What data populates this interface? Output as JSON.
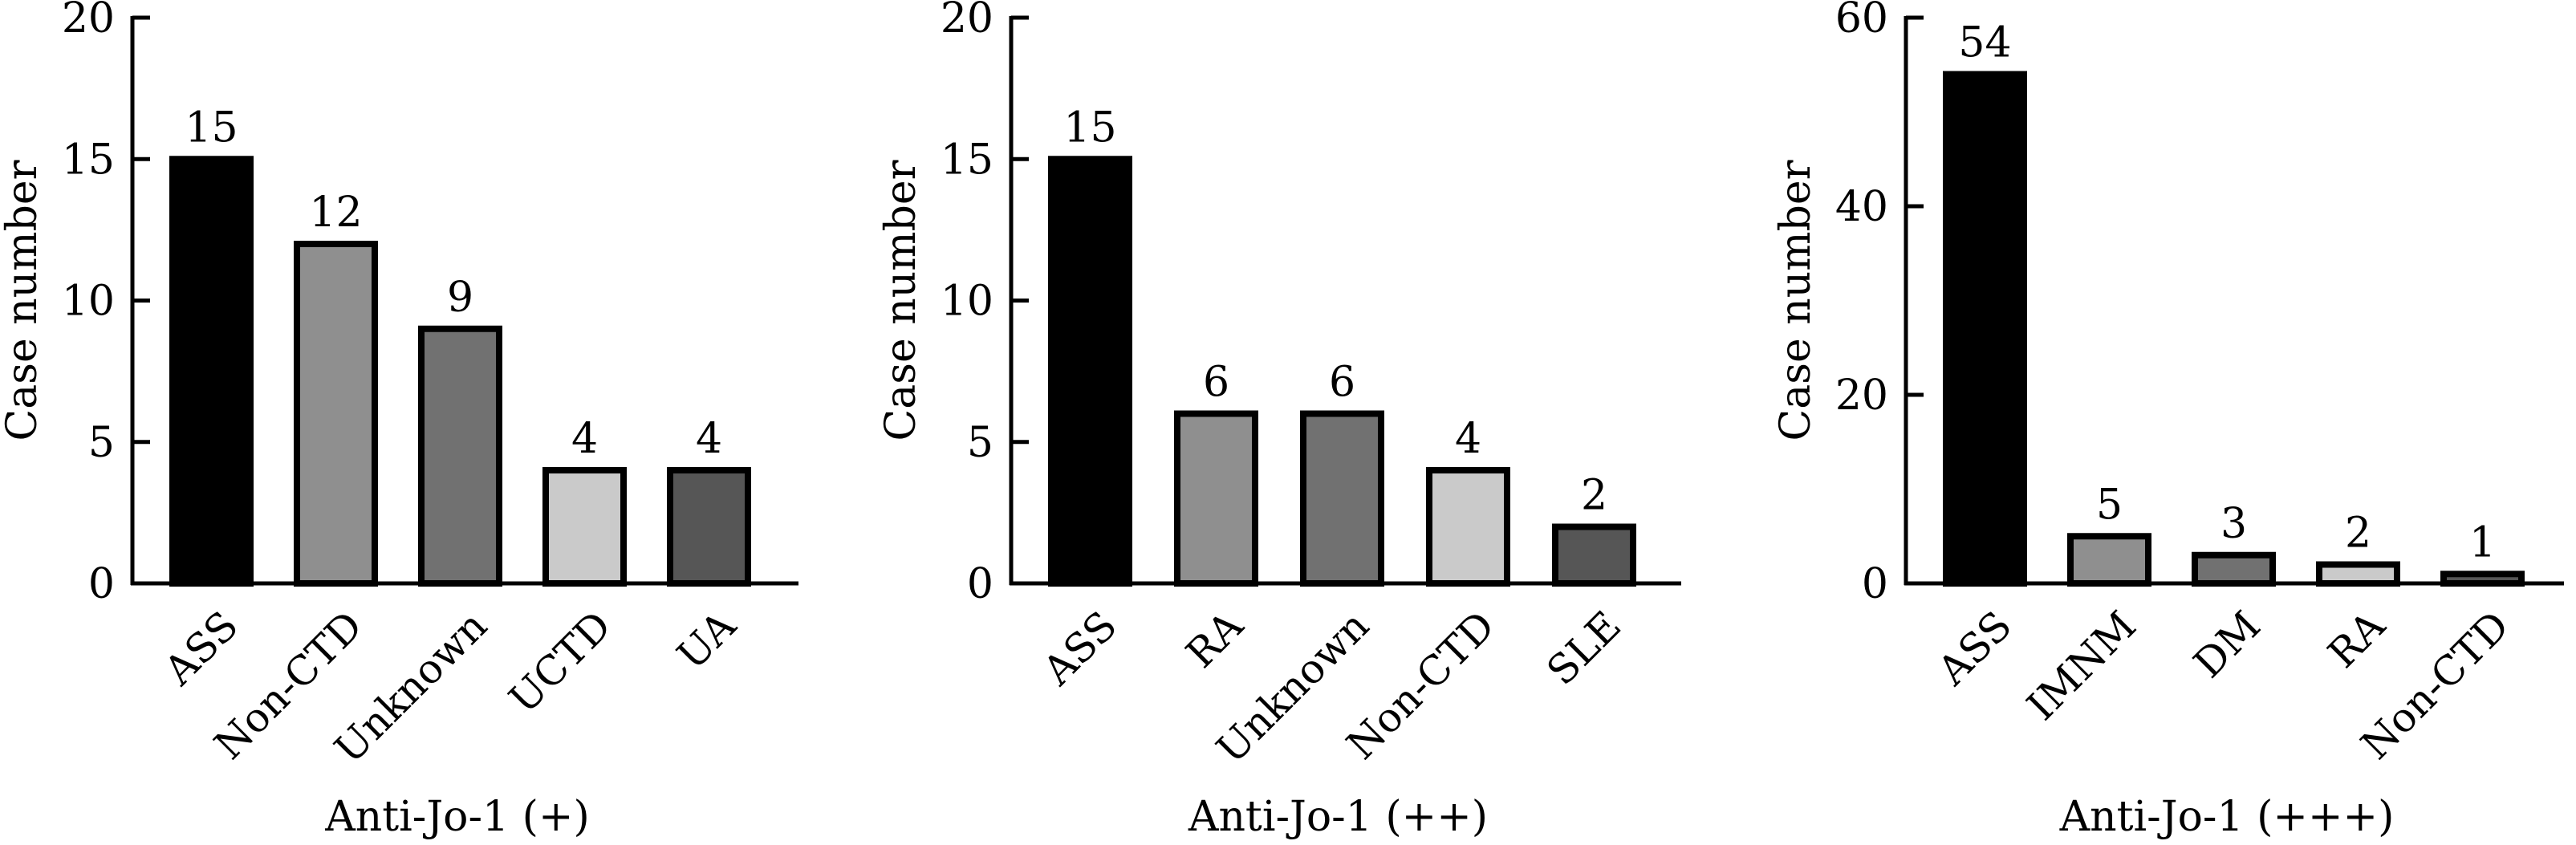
{
  "chart_data": [
    {
      "type": "bar",
      "xlabel": "Anti-Jo-1 (+)",
      "ylabel": "Case number",
      "ylim": [
        0,
        20
      ],
      "yticks": [
        0,
        5,
        10,
        15,
        20
      ],
      "grid": false,
      "categories": [
        "ASS",
        "Non-CTD",
        "Unknown",
        "UCTD",
        "UA"
      ],
      "values": [
        15,
        12,
        9,
        4,
        4
      ],
      "data_labels": [
        "15",
        "12",
        "9",
        "4",
        "4"
      ],
      "bar_colors": [
        "#000000",
        "#8f8f8f",
        "#717171",
        "#cacaca",
        "#565656"
      ]
    },
    {
      "type": "bar",
      "xlabel": "Anti-Jo-1 (++)",
      "ylabel": "Case number",
      "ylim": [
        0,
        20
      ],
      "yticks": [
        0,
        5,
        10,
        15,
        20
      ],
      "grid": false,
      "categories": [
        "ASS",
        "RA",
        "Unknown",
        "Non-CTD",
        "SLE"
      ],
      "values": [
        15,
        6,
        6,
        4,
        2
      ],
      "data_labels": [
        "15",
        "6",
        "6",
        "4",
        "2"
      ],
      "bar_colors": [
        "#000000",
        "#8f8f8f",
        "#717171",
        "#cacaca",
        "#565656"
      ]
    },
    {
      "type": "bar",
      "xlabel": "Anti-Jo-1 (+++)",
      "ylabel": "Case number",
      "ylim": [
        0,
        60
      ],
      "yticks": [
        0,
        20,
        40,
        60
      ],
      "grid": false,
      "categories": [
        "ASS",
        "IMNM",
        "DM",
        "RA",
        "Non-CTD"
      ],
      "values": [
        54,
        5,
        3,
        2,
        1
      ],
      "data_labels": [
        "54",
        "5",
        "3",
        "2",
        "1"
      ],
      "bar_colors": [
        "#000000",
        "#8f8f8f",
        "#717171",
        "#cacaca",
        "#565656"
      ]
    }
  ]
}
